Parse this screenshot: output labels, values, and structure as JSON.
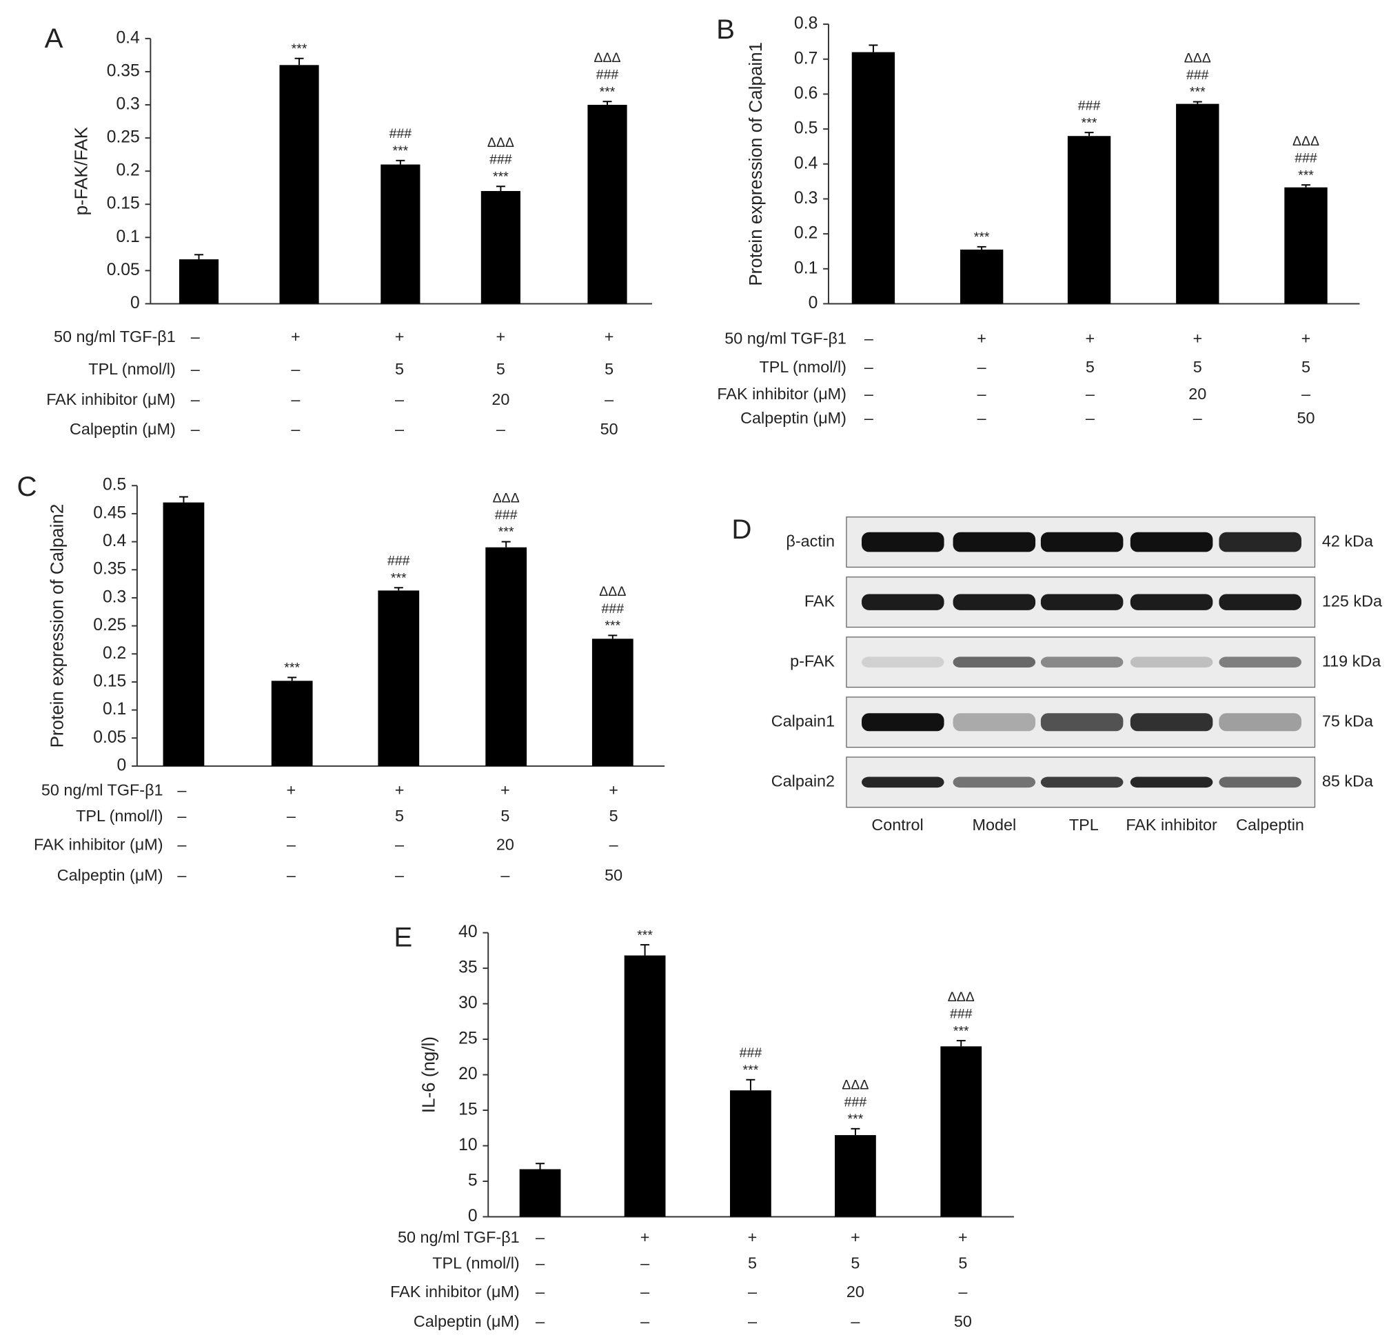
{
  "chart_data": [
    {
      "type": "bar",
      "panel": "A",
      "ylabel": "p-FAK/FAK",
      "color": "#000000",
      "ylim": [
        0,
        0.4
      ],
      "yticks": [
        0,
        0.05,
        0.1,
        0.15,
        0.2,
        0.25,
        0.3,
        0.35,
        0.4
      ],
      "values": [
        0.067,
        0.36,
        0.21,
        0.17,
        0.3
      ],
      "errors": [
        0.007,
        0.01,
        0.006,
        0.007,
        0.005
      ],
      "annotations": [
        [],
        [
          "***"
        ],
        [
          "###",
          "***"
        ],
        [
          "ΔΔΔ",
          "###",
          "***"
        ],
        [
          "ΔΔΔ",
          "###",
          "***"
        ]
      ],
      "conditions": [
        {
          "label": "50 ng/ml TGF-β1",
          "values": [
            "–",
            "+",
            "+",
            "+",
            "+"
          ]
        },
        {
          "label": "TPL (nmol/l)",
          "values": [
            "–",
            "–",
            "5",
            "5",
            "5"
          ]
        },
        {
          "label": "FAK inhibitor (μM)",
          "values": [
            "–",
            "–",
            "–",
            "20",
            "–"
          ]
        },
        {
          "label": "Calpeptin (μM)",
          "values": [
            "–",
            "–",
            "–",
            "–",
            "50"
          ]
        }
      ]
    },
    {
      "type": "bar",
      "panel": "B",
      "ylabel": "Protein expression of Calpain1",
      "color": "#000000",
      "ylim": [
        0,
        0.8
      ],
      "yticks": [
        0,
        0.1,
        0.2,
        0.3,
        0.4,
        0.5,
        0.6,
        0.7,
        0.8
      ],
      "values": [
        0.72,
        0.155,
        0.48,
        0.572,
        0.333
      ],
      "errors": [
        0.02,
        0.008,
        0.01,
        0.006,
        0.007
      ],
      "annotations": [
        [],
        [
          "***"
        ],
        [
          "###",
          "***"
        ],
        [
          "ΔΔΔ",
          "###",
          "***"
        ],
        [
          "ΔΔΔ",
          "###",
          "***"
        ]
      ],
      "conditions": [
        {
          "label": "50 ng/ml TGF-β1",
          "values": [
            "–",
            "+",
            "+",
            "+",
            "+"
          ]
        },
        {
          "label": "TPL (nmol/l)",
          "values": [
            "–",
            "–",
            "5",
            "5",
            "5"
          ]
        },
        {
          "label": "FAK inhibitor (μM)",
          "values": [
            "–",
            "–",
            "–",
            "20",
            "–"
          ]
        },
        {
          "label": "Calpeptin (μM)",
          "values": [
            "–",
            "–",
            "–",
            "–",
            "50"
          ]
        }
      ]
    },
    {
      "type": "bar",
      "panel": "C",
      "ylabel": "Protein expression of Calpain2",
      "color": "#000000",
      "ylim": [
        0,
        0.5
      ],
      "yticks": [
        0,
        0.05,
        0.1,
        0.15,
        0.2,
        0.25,
        0.3,
        0.35,
        0.4,
        0.45,
        0.5
      ],
      "values": [
        0.47,
        0.152,
        0.313,
        0.39,
        0.227
      ],
      "errors": [
        0.01,
        0.006,
        0.005,
        0.01,
        0.006
      ],
      "annotations": [
        [],
        [
          "***"
        ],
        [
          "###",
          "***"
        ],
        [
          "ΔΔΔ",
          "###",
          "***"
        ],
        [
          "ΔΔΔ",
          "###",
          "***"
        ]
      ],
      "conditions": [
        {
          "label": "50 ng/ml TGF-β1",
          "values": [
            "–",
            "+",
            "+",
            "+",
            "+"
          ]
        },
        {
          "label": "TPL (nmol/l)",
          "values": [
            "–",
            "–",
            "5",
            "5",
            "5"
          ]
        },
        {
          "label": "FAK inhibitor (μM)",
          "values": [
            "–",
            "–",
            "–",
            "20",
            "–"
          ]
        },
        {
          "label": "Calpeptin (μM)",
          "values": [
            "–",
            "–",
            "–",
            "–",
            "50"
          ]
        }
      ]
    },
    {
      "type": "bar",
      "panel": "E",
      "ylabel": "IL-6 (ng/l)",
      "color": "#000000",
      "ylim": [
        0,
        40
      ],
      "yticks": [
        0,
        5,
        10,
        15,
        20,
        25,
        30,
        35,
        40
      ],
      "values": [
        6.7,
        36.8,
        17.8,
        11.5,
        24
      ],
      "errors": [
        0.8,
        1.5,
        1.5,
        0.9,
        0.8
      ],
      "annotations": [
        [],
        [
          "***"
        ],
        [
          "###",
          "***"
        ],
        [
          "ΔΔΔ",
          "###",
          "***"
        ],
        [
          "ΔΔΔ",
          "###",
          "***"
        ]
      ],
      "conditions": [
        {
          "label": "50 ng/ml TGF-β1",
          "values": [
            "–",
            "+",
            "+",
            "+",
            "+"
          ]
        },
        {
          "label": "TPL (nmol/l)",
          "values": [
            "–",
            "–",
            "5",
            "5",
            "5"
          ]
        },
        {
          "label": "FAK inhibitor (μM)",
          "values": [
            "–",
            "–",
            "–",
            "20",
            "–"
          ]
        },
        {
          "label": "Calpeptin (μM)",
          "values": [
            "–",
            "–",
            "–",
            "–",
            "50"
          ]
        }
      ]
    }
  ],
  "blot": {
    "panel": "D",
    "rows": [
      {
        "label": "β-actin",
        "size": "42 kDa"
      },
      {
        "label": "FAK",
        "size": "125 kDa"
      },
      {
        "label": "p-FAK",
        "size": "119 kDa"
      },
      {
        "label": "Calpain1",
        "size": "75 kDa"
      },
      {
        "label": "Calpain2",
        "size": "85 kDa"
      }
    ],
    "lanes": [
      "Control",
      "Model",
      "TPL",
      "FAK inhibitor",
      "Calpeptin"
    ]
  }
}
